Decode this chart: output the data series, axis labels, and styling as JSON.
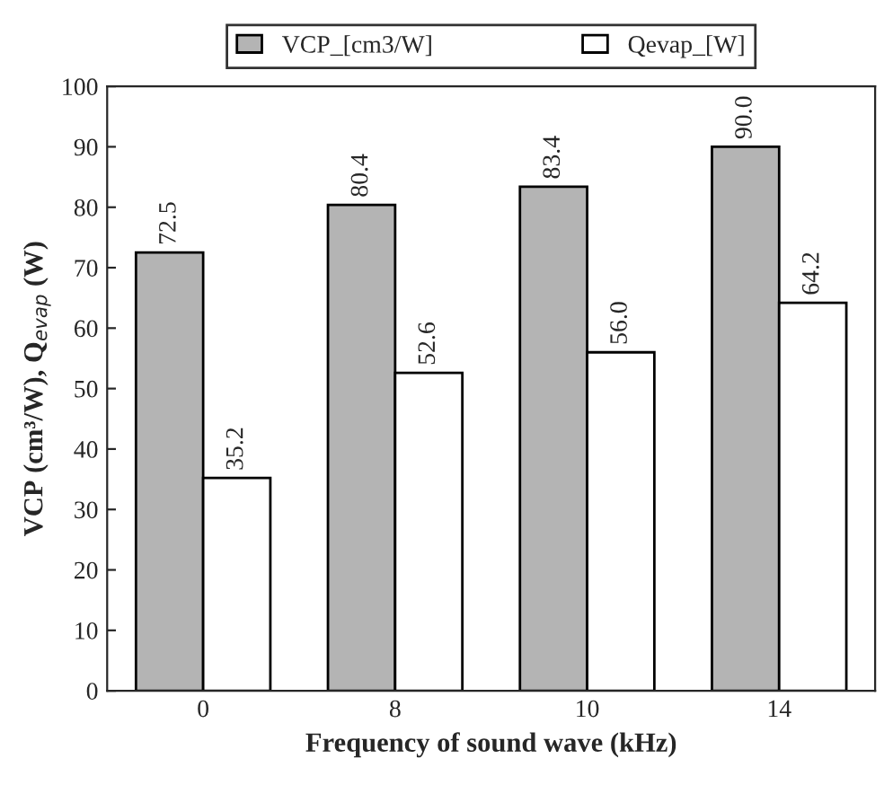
{
  "chart_data": {
    "type": "bar",
    "xlabel": "Frequency of sound wave (kHz)",
    "ylabel": "VCP (cm³/W), Q$_{evap}$ (W)",
    "categories": [
      "0",
      "8",
      "10",
      "14"
    ],
    "series": [
      {
        "name": "VCP_[cm3/W]",
        "color": "#b4b4b4",
        "values": [
          72.5,
          80.4,
          83.4,
          90.0
        ],
        "value_labels": [
          "72.5",
          "80.4",
          "83.4",
          "90.0"
        ]
      },
      {
        "name": "Qevap_[W]",
        "color": "#ffffff",
        "values": [
          35.2,
          52.6,
          56.0,
          64.2
        ],
        "value_labels": [
          "35.2",
          "52.6",
          "56.0",
          "64.2"
        ]
      }
    ],
    "ylim": [
      0,
      100
    ],
    "yticks": [
      0,
      10,
      20,
      30,
      40,
      50,
      60,
      70,
      80,
      90,
      100
    ],
    "grid": false,
    "legend": "top"
  }
}
